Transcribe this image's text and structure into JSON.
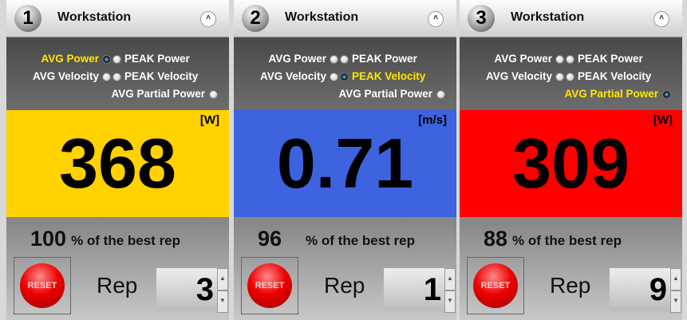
{
  "panels": [
    {
      "number": 1,
      "title": "Workstation",
      "options": [
        "AVG Power",
        "PEAK Power",
        "AVG Velocity",
        "PEAK Velocity",
        "AVG Partial Power"
      ],
      "selected": 0,
      "unit": "[W]",
      "value": 368,
      "color": "#ffd200",
      "percent": 100,
      "percent_text": "% of the best rep",
      "reset": "RESET",
      "rep_label": "Rep",
      "rep": 3
    },
    {
      "number": 2,
      "title": "Workstation",
      "options": [
        "AVG Power",
        "PEAK Power",
        "AVG Velocity",
        "PEAK Velocity",
        "AVG Partial Power"
      ],
      "selected": 3,
      "unit": "[m/s]",
      "value": 0.71,
      "color": "#3e63df",
      "percent": 96,
      "percent_text": "% of the best rep",
      "reset": "RESET",
      "rep_label": "Rep",
      "rep": 1
    },
    {
      "number": 3,
      "title": "Workstation",
      "options": [
        "AVG Power",
        "PEAK Power",
        "AVG Velocity",
        "PEAK Velocity",
        "AVG Partial Power"
      ],
      "selected": 4,
      "unit": "[W]",
      "value": 309,
      "color": "#ff0000",
      "percent": 88,
      "percent_text": "% of the best rep",
      "reset": "RESET",
      "rep_label": "Rep",
      "rep": 9
    }
  ]
}
